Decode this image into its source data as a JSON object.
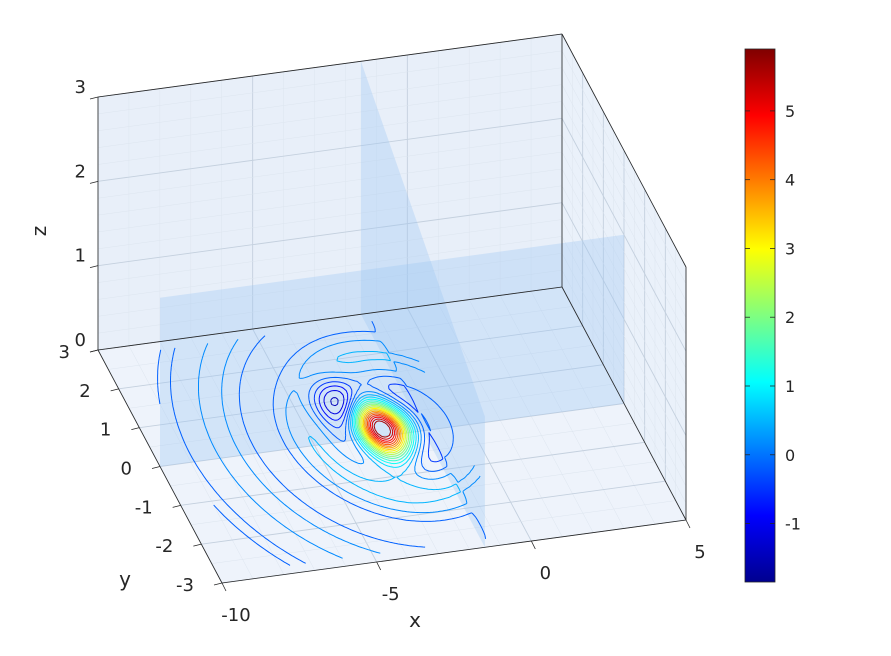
{
  "chart_data": {
    "type": "contour3d",
    "title": "",
    "xlabel": "x",
    "ylabel": "y",
    "zlabel": "z",
    "xlim": [
      -10,
      5
    ],
    "ylim": [
      -3,
      3
    ],
    "zlim": [
      0,
      3
    ],
    "x_ticks": [
      -10,
      -5,
      0,
      5
    ],
    "x_tick_labels": [
      "-10",
      "-5",
      "0",
      "5"
    ],
    "y_ticks": [
      -3,
      -2,
      -1,
      0,
      1,
      2,
      3
    ],
    "y_tick_labels": [
      "-3",
      "-2",
      "-1",
      "0",
      "1",
      "2",
      "3"
    ],
    "z_ticks": [
      0,
      1,
      2,
      3
    ],
    "z_tick_labels": [
      "0",
      "1",
      "2",
      "3"
    ],
    "grid": true,
    "colormap": "jet",
    "clim": [
      -1.85,
      5.9
    ],
    "colorbar_ticks": [
      -1,
      0,
      1,
      2,
      3,
      4,
      5
    ],
    "colorbar_tick_labels": [
      "-1",
      "0",
      "1",
      "2",
      "3",
      "4",
      "5"
    ],
    "slice_planes": [
      {
        "orientation": "constant-x",
        "x": -1.5
      },
      {
        "orientation": "constant-y",
        "y": 0
      }
    ],
    "contour_plane_z": 0,
    "field_peak": {
      "x": -2.8,
      "y": 0.2,
      "value": 5.85
    },
    "field_trough": {
      "x": -3.5,
      "y": 1.0,
      "value": -1.8
    }
  }
}
